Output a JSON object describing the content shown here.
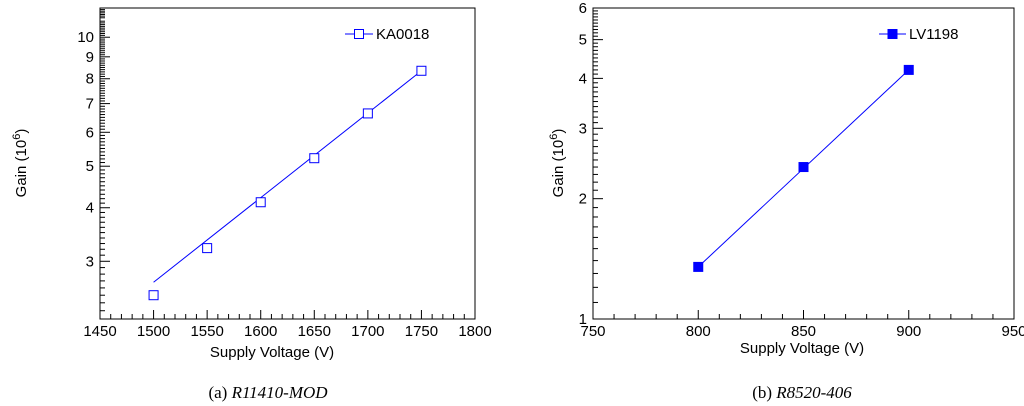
{
  "chart_data": [
    {
      "type": "scatter",
      "caption": {
        "prefix": "(a)",
        "title": "R11410-MOD"
      },
      "xlabel": "Supply Voltage (V)",
      "ylabel_main": "Gain  (10",
      "ylabel_exp": "6",
      "ylabel_close": ")",
      "xlim": [
        1450,
        1800
      ],
      "ylim": [
        2.2,
        11.7
      ],
      "yscale": "log",
      "xticks": [
        1450,
        1500,
        1550,
        1600,
        1650,
        1700,
        1750,
        1800
      ],
      "yticks": [
        3,
        4,
        5,
        6,
        7,
        8,
        9,
        10
      ],
      "legend_position": "top-right",
      "series": [
        {
          "name": "KA0018",
          "marker": "open-square",
          "color": "#0000ff",
          "x": [
            1500,
            1550,
            1600,
            1650,
            1700,
            1750
          ],
          "y": [
            2.5,
            3.22,
            4.12,
            5.22,
            6.64,
            8.35
          ],
          "fit": {
            "x": [
              1500,
              1750
            ],
            "y": [
              2.68,
              8.35
            ]
          }
        }
      ]
    },
    {
      "type": "scatter",
      "caption": {
        "prefix": "(b)",
        "title": "R8520-406"
      },
      "xlabel": "Supply Voltage (V)",
      "ylabel_main": "Gain  (10",
      "ylabel_exp": "6",
      "ylabel_close": ")",
      "xlim": [
        750,
        950
      ],
      "ylim": [
        1,
        6
      ],
      "yscale": "log",
      "xticks": [
        750,
        800,
        850,
        900,
        950
      ],
      "yticks": [
        1,
        2,
        3,
        4,
        5,
        6
      ],
      "legend_position": "top-right",
      "series": [
        {
          "name": "LV1198",
          "marker": "filled-square",
          "color": "#0000ff",
          "x": [
            800,
            850,
            900
          ],
          "y": [
            1.35,
            2.4,
            4.2
          ],
          "fit": {
            "x": [
              800,
              900
            ],
            "y": [
              1.35,
              4.2
            ]
          }
        }
      ]
    }
  ]
}
